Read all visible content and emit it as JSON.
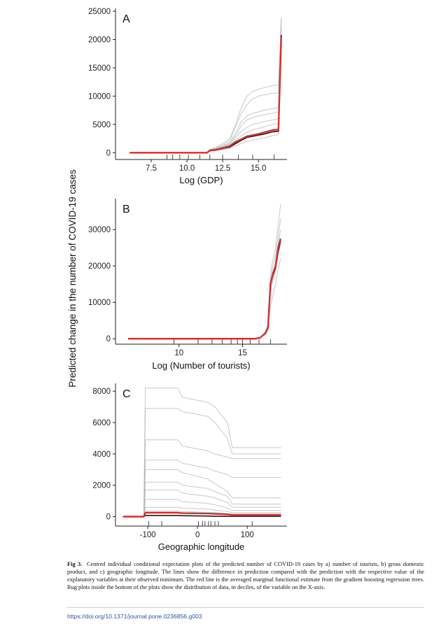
{
  "figure": {
    "ylabel": "Predicted change in the number of COVID-19 cases",
    "caption_label": "Fig 3.",
    "caption_text": "Centred individual conditional expectation plots of the predicted number of COVID-19 cases by a) number of tourists, b) gross domestic product, and c) geographic longitude. The lines show the difference in prediction compared with the prediction with the respective value of the explanatory variables at their observed minimum. The red line is the averaged marginal functional estimate from the gradient boosting regression trees. Rug plots inside the bottom of the plots show the distribution of data, in deciles, of the variable on the X-axis.",
    "doi": "https://doi.org/10.1371/journal.pone.0236856.g003"
  },
  "colors": {
    "avg_line": "#d32f2f",
    "ice_line": "#b5b5b5",
    "dark_line": "#000000"
  },
  "chart_data": [
    {
      "type": "line",
      "panel_label": "A",
      "xlabel": "Log (GDP)",
      "xlim": [
        5,
        17
      ],
      "ylim": [
        -1200,
        25500
      ],
      "xticks": [
        7.5,
        10.0,
        12.5,
        15.0
      ],
      "xtick_labels": [
        "7.5",
        "10.0",
        "12.5",
        "15.0"
      ],
      "yticks": [
        0,
        5000,
        10000,
        15000,
        20000,
        25000
      ],
      "ytick_labels": [
        "0",
        "5000",
        "10000",
        "15000",
        "20000",
        "25000"
      ],
      "rug": [
        8.6,
        9.0,
        9.5,
        10.1,
        10.9,
        11.6,
        12.5,
        13.6,
        14.6,
        16.1
      ],
      "x": [
        6.0,
        11.4,
        11.6,
        12.0,
        12.6,
        13.0,
        13.4,
        13.8,
        14.2,
        14.6,
        15.0,
        15.4,
        16.0,
        16.4,
        16.6
      ],
      "series": [
        {
          "name": "average",
          "values": [
            0,
            0,
            400,
            500,
            900,
            1200,
            1900,
            2400,
            2900,
            3100,
            3300,
            3600,
            4000,
            4100,
            20500
          ]
        },
        {
          "name": "ice",
          "values": [
            0,
            0,
            300,
            400,
            600,
            800,
            1200,
            1600,
            2000,
            2200,
            2400,
            2600,
            3000,
            3200,
            21000
          ]
        },
        {
          "name": "ice",
          "values": [
            0,
            0,
            500,
            700,
            1300,
            1800,
            3500,
            5500,
            6500,
            7000,
            7200,
            7500,
            7800,
            8000,
            22000
          ]
        },
        {
          "name": "ice",
          "values": [
            0,
            0,
            600,
            900,
            1800,
            2500,
            5000,
            8000,
            10000,
            10800,
            11200,
            11500,
            11800,
            12000,
            23500
          ]
        },
        {
          "name": "ice",
          "values": [
            0,
            0,
            500,
            800,
            1500,
            2200,
            4500,
            7000,
            8500,
            9500,
            10000,
            10200,
            10500,
            10500,
            24000
          ]
        },
        {
          "name": "ice",
          "values": [
            0,
            0,
            400,
            600,
            1100,
            1500,
            2700,
            3800,
            4500,
            5000,
            5200,
            5500,
            5800,
            6000,
            20500
          ]
        },
        {
          "name": "ice",
          "values": [
            0,
            0,
            450,
            650,
            1200,
            1700,
            3000,
            4800,
            5800,
            6200,
            6500,
            6700,
            7000,
            7200,
            22500
          ]
        },
        {
          "name": "ice",
          "values": [
            0,
            0,
            350,
            500,
            900,
            1300,
            2200,
            3000,
            3600,
            4000,
            4300,
            4600,
            5000,
            5200,
            21500
          ]
        },
        {
          "name": "dark",
          "values": [
            0,
            0,
            350,
            450,
            800,
            1000,
            1600,
            2200,
            2700,
            2900,
            3100,
            3300,
            3700,
            3800,
            20800
          ]
        }
      ]
    },
    {
      "type": "line",
      "panel_label": "B",
      "xlabel": "Log (Number of tourists)",
      "xlim": [
        5,
        18.5
      ],
      "ylim": [
        -1500,
        38500
      ],
      "xticks": [
        10,
        15
      ],
      "xtick_labels": [
        "10",
        "15"
      ],
      "yticks": [
        0,
        10000,
        20000,
        30000
      ],
      "ytick_labels": [
        "0",
        "10000",
        "20000",
        "30000"
      ],
      "rug": [
        9.6,
        11.5,
        12.6,
        13.4,
        14.1,
        14.6,
        15.0,
        15.6,
        16.3,
        17.2
      ],
      "x": [
        6.0,
        16.0,
        16.4,
        16.8,
        17.0,
        17.2,
        17.4,
        17.6,
        17.8,
        18.0
      ],
      "series": [
        {
          "name": "average",
          "values": [
            0,
            0,
            300,
            1500,
            3000,
            15000,
            18000,
            20000,
            25000,
            27500
          ]
        },
        {
          "name": "ice",
          "values": [
            0,
            0,
            200,
            1200,
            2500,
            13000,
            16000,
            19000,
            23000,
            26000
          ]
        },
        {
          "name": "ice",
          "values": [
            0,
            0,
            400,
            2000,
            4000,
            18000,
            22000,
            25000,
            31000,
            37000
          ]
        },
        {
          "name": "ice",
          "values": [
            0,
            0,
            350,
            1800,
            3500,
            16000,
            20000,
            23000,
            28000,
            33000
          ]
        },
        {
          "name": "ice",
          "values": [
            0,
            0,
            300,
            1600,
            3200,
            14000,
            17000,
            21000,
            26000,
            30000
          ]
        },
        {
          "name": "ice",
          "values": [
            0,
            0,
            250,
            1300,
            2800,
            9000,
            12000,
            15000,
            19000,
            22000
          ]
        },
        {
          "name": "dark",
          "values": [
            0,
            0,
            300,
            1500,
            3000,
            15000,
            17500,
            19500,
            24000,
            27000
          ]
        }
      ]
    },
    {
      "type": "line",
      "panel_label": "C",
      "xlabel": "Geographic longitude",
      "xlim": [
        -165,
        180
      ],
      "ylim": [
        -600,
        8500
      ],
      "xticks": [
        -100,
        0,
        100
      ],
      "xtick_labels": [
        "-100",
        "0",
        "100"
      ],
      "yticks": [
        0,
        2000,
        4000,
        6000,
        8000
      ],
      "ytick_labels": [
        "0",
        "2000",
        "4000",
        "6000",
        "8000"
      ],
      "rug": [
        -98,
        -72,
        2,
        10,
        15,
        22,
        27,
        35,
        42,
        110
      ],
      "x": [
        -150,
        -108,
        -105,
        -40,
        -30,
        20,
        35,
        60,
        70,
        168
      ],
      "series": [
        {
          "name": "average",
          "values": [
            0,
            0,
            250,
            250,
            220,
            200,
            180,
            150,
            120,
            120
          ]
        },
        {
          "name": "ice",
          "values": [
            0,
            0,
            8200,
            8200,
            7600,
            7300,
            7000,
            6000,
            4400,
            4400
          ]
        },
        {
          "name": "ice",
          "values": [
            0,
            0,
            6900,
            6900,
            6700,
            6400,
            6000,
            5000,
            4000,
            4000
          ]
        },
        {
          "name": "ice",
          "values": [
            0,
            0,
            4900,
            4900,
            4500,
            4200,
            4000,
            3800,
            3700,
            3700
          ]
        },
        {
          "name": "ice",
          "values": [
            0,
            0,
            3600,
            3600,
            3400,
            3100,
            2900,
            2700,
            2500,
            2500
          ]
        },
        {
          "name": "ice",
          "values": [
            0,
            0,
            3000,
            3000,
            2800,
            2400,
            2100,
            1600,
            1200,
            1200
          ]
        },
        {
          "name": "ice",
          "values": [
            0,
            0,
            2200,
            2200,
            2000,
            1800,
            1600,
            1300,
            800,
            800
          ]
        },
        {
          "name": "ice",
          "values": [
            0,
            0,
            1700,
            1700,
            1500,
            1300,
            1200,
            900,
            600,
            600
          ]
        },
        {
          "name": "ice",
          "values": [
            0,
            0,
            1100,
            1100,
            950,
            850,
            750,
            550,
            400,
            400
          ]
        },
        {
          "name": "ice",
          "values": [
            0,
            0,
            600,
            600,
            550,
            480,
            420,
            330,
            260,
            260
          ]
        },
        {
          "name": "ice",
          "values": [
            0,
            0,
            350,
            350,
            320,
            280,
            250,
            200,
            150,
            150
          ]
        },
        {
          "name": "dark",
          "values": [
            0,
            0,
            80,
            80,
            60,
            40,
            30,
            20,
            20,
            20
          ]
        }
      ]
    }
  ]
}
